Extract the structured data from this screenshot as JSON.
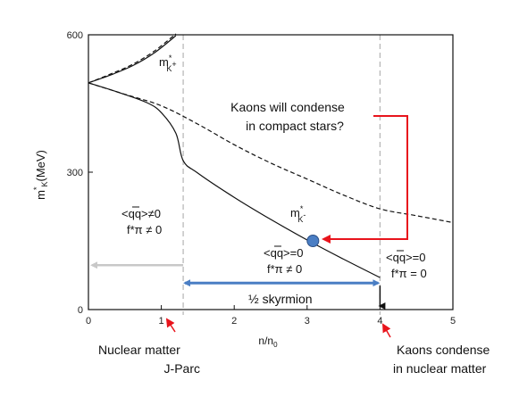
{
  "chart_data": {
    "type": "line",
    "title": "",
    "xlabel": "n/n",
    "xlabel_sub": "0",
    "ylabel": "m",
    "ylabel_sup": "*",
    "ylabel_sub": "K",
    "ylabel_unit": "(MeV)",
    "xlim": [
      0,
      5
    ],
    "ylim": [
      0,
      600
    ],
    "x_ticks": [
      0,
      1,
      2,
      3,
      4,
      5
    ],
    "y_ticks": [
      0,
      300,
      600
    ],
    "x_tick_labels": [
      "0",
      "1",
      "2",
      "3",
      "4",
      "5"
    ],
    "y_tick_labels": [
      "0",
      "300",
      "600"
    ],
    "grid": false,
    "series": [
      {
        "style": "solid",
        "x": [
          0,
          0.3,
          0.6,
          0.9,
          1.2
        ],
        "y": [
          495,
          512,
          532,
          560,
          598
        ]
      },
      {
        "style": "dashed",
        "x": [
          0,
          0.3,
          0.6,
          0.9,
          1.2
        ],
        "y": [
          495,
          514,
          535,
          564,
          602
        ]
      },
      {
        "style": "solid",
        "x": [
          0,
          0.4,
          0.8,
          1.0,
          1.2,
          1.3,
          1.5,
          2.0,
          2.5,
          3.0,
          3.5,
          4.0
        ],
        "y": [
          495,
          475,
          452,
          430,
          385,
          325,
          298,
          245,
          197,
          152,
          110,
          70
        ]
      },
      {
        "style": "dashed",
        "x": [
          0,
          0.5,
          1.0,
          1.5,
          2.0,
          2.5,
          3.0,
          3.5,
          4.0,
          4.5,
          5.0
        ],
        "y": [
          495,
          470,
          445,
          405,
          360,
          320,
          285,
          250,
          220,
          205,
          190
        ]
      }
    ],
    "vlines": [
      1.3,
      4.0
    ],
    "marker": {
      "x": 3.08,
      "y": 150
    },
    "gray_arrow": {
      "x_from": 1.3,
      "x_to": 0,
      "y": 97
    },
    "blue_arrow": {
      "x_from": 1.3,
      "x_to": 4.0,
      "y": 58
    },
    "down_arrow": {
      "x": 4.0,
      "y_from": 60,
      "y_to": 0
    },
    "annotations": {
      "m_kplus_main": "m",
      "m_kplus_sup": "*",
      "m_kplus_sub": "K",
      "m_kplus_charge": "+",
      "m_kminus_main": "m",
      "m_kminus_sup": "*",
      "m_kminus_sub": "K",
      "m_kminus_charge": "-",
      "region_left_cond": "<qq>≠0",
      "region_left_fpi": "f*π ≠ 0",
      "region_mid_cond": "<qq>=0",
      "region_mid_fpi": "f*π ≠ 0",
      "region_right_cond": "<qq>=0",
      "region_right_fpi": "f*π = 0",
      "skyrmion": "½ skyrmion",
      "question_line1": "Kaons will condense",
      "question_line2": "in compact stars?",
      "bottom_left_line1": "Nuclear matter",
      "bottom_left_line2": "J-Parc",
      "bottom_right_line1": "Kaons condense",
      "bottom_right_line2": "in nuclear matter"
    },
    "colors": {
      "curve": "#111111",
      "red": "#e8141c",
      "blue": "#4a7ec4",
      "marker": "#4a7ec4",
      "gray": "#c8c8c8",
      "vline": "#b4b4b4"
    }
  }
}
